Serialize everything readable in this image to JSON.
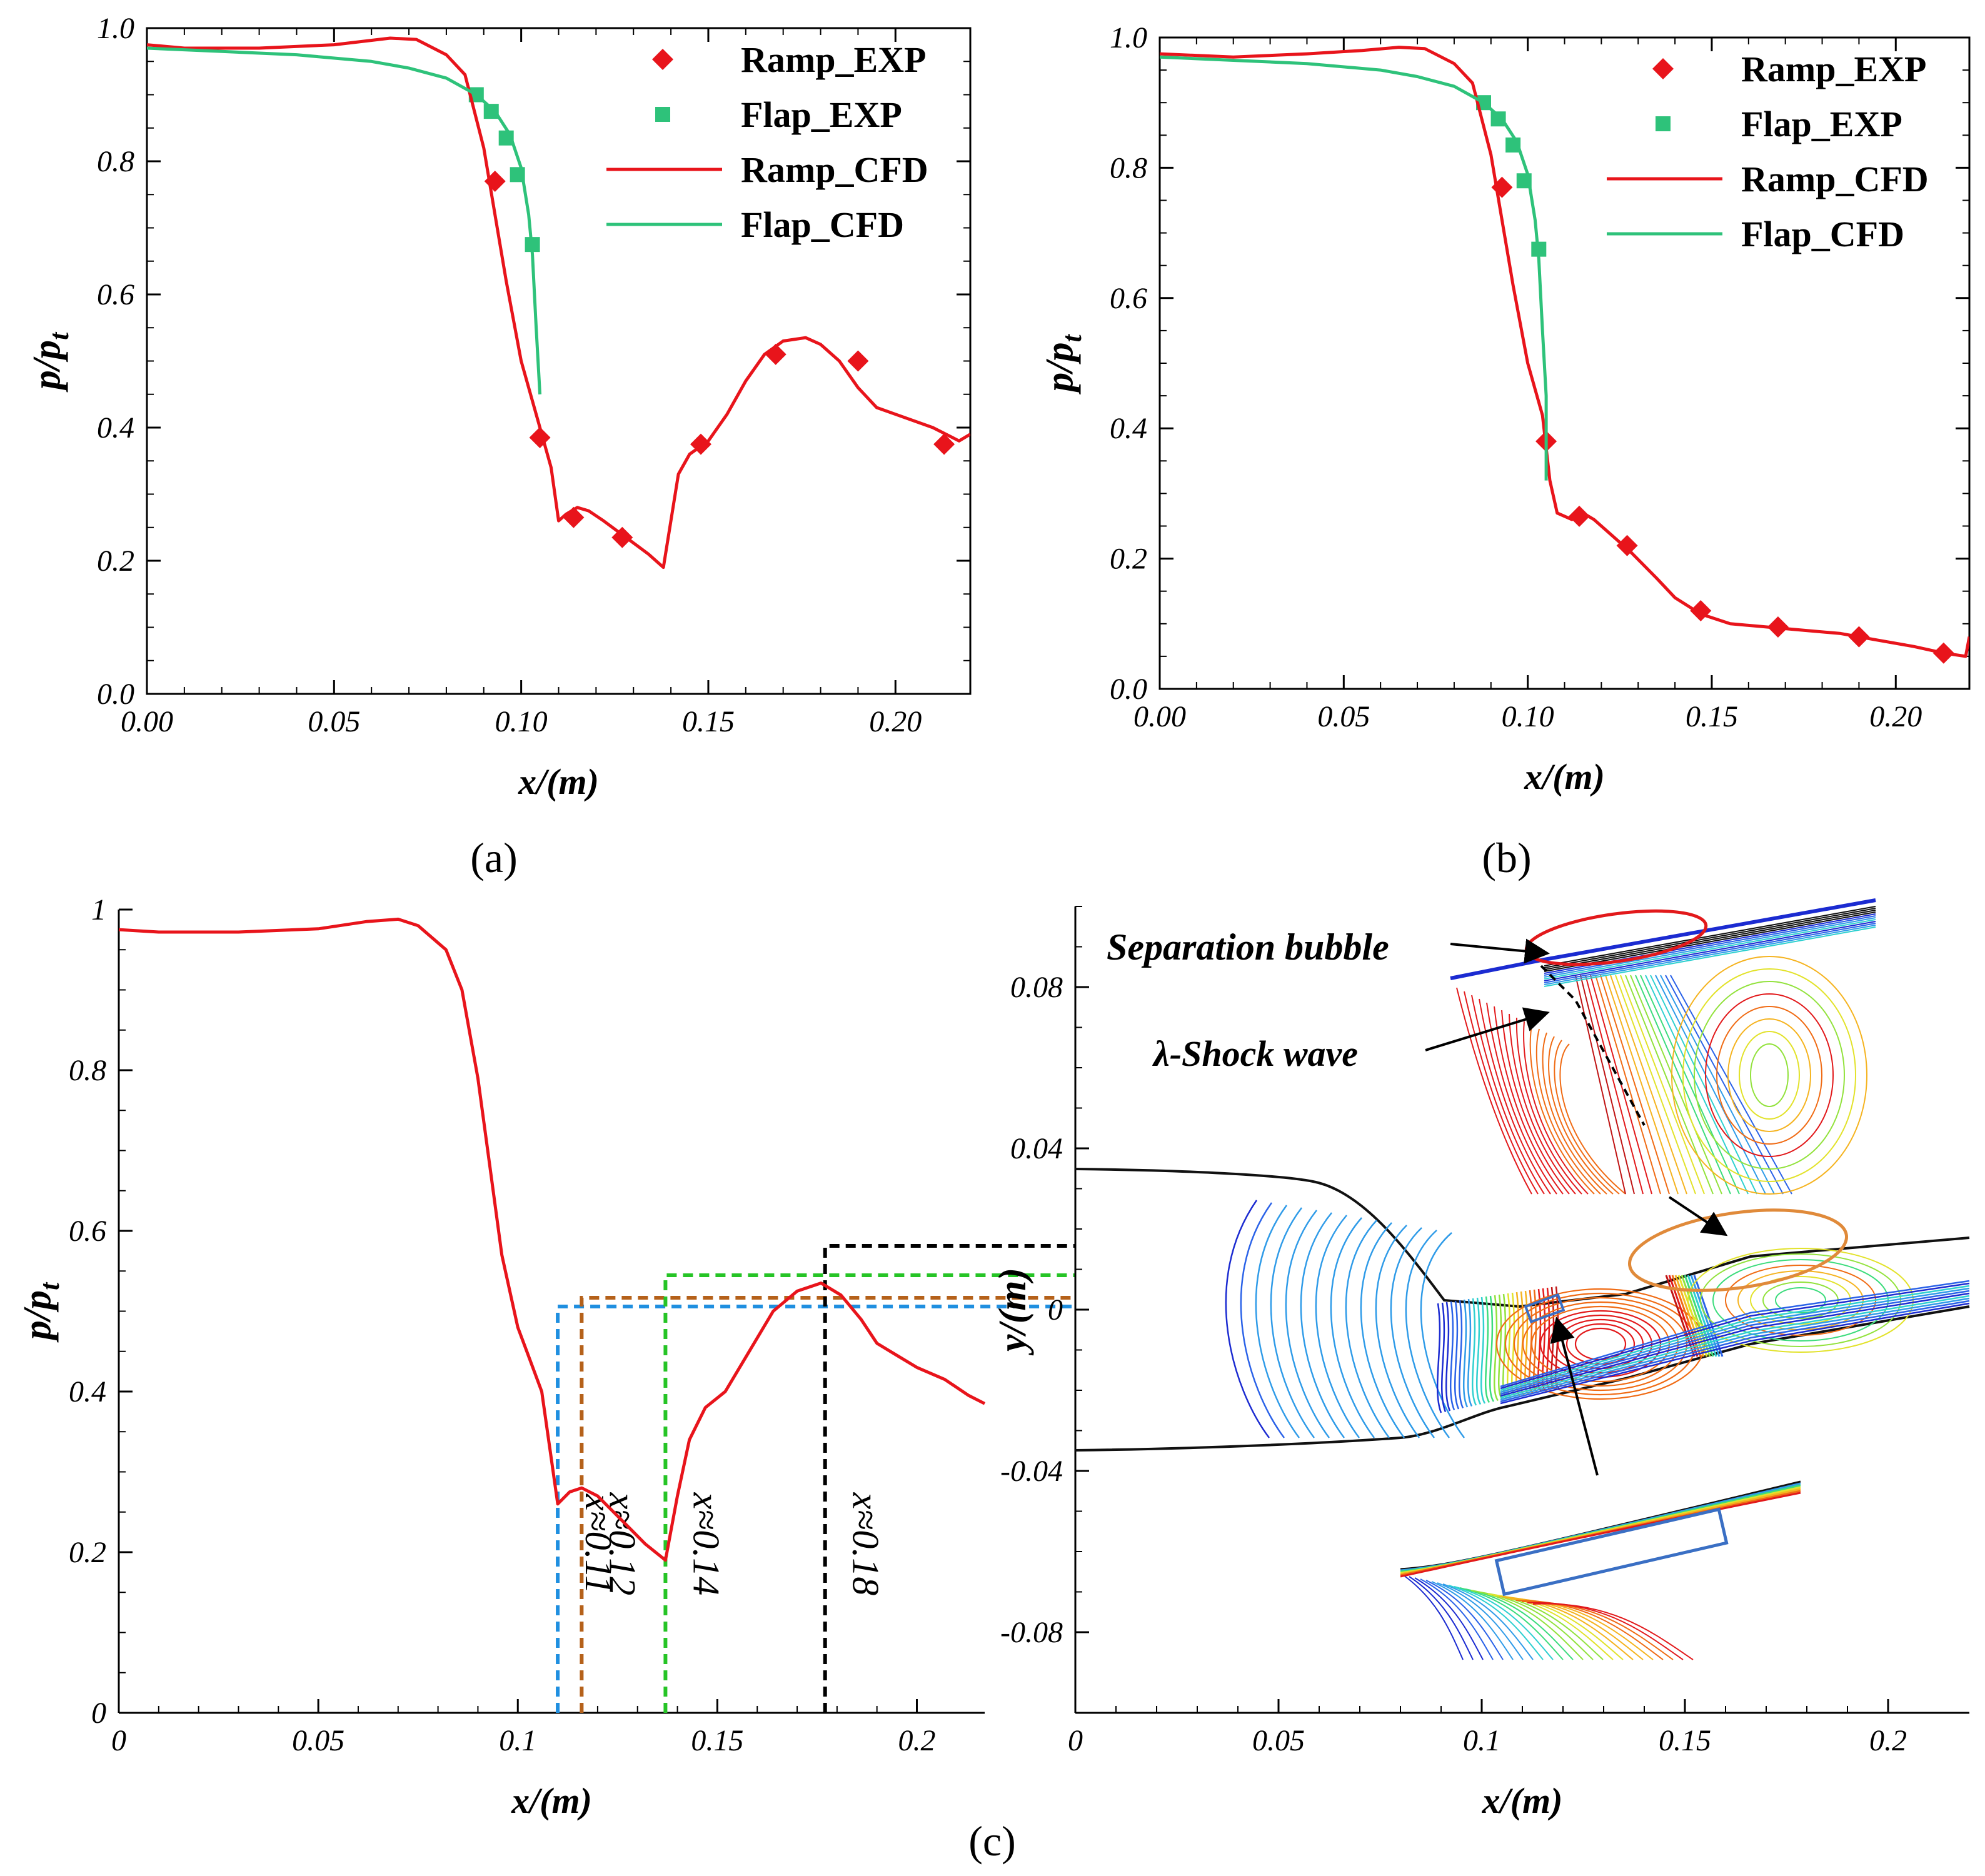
{
  "colors": {
    "ramp": "#e8141b",
    "flap": "#2ec27a",
    "blue_dash": "#1f8fe0",
    "brown_dash": "#b5611a",
    "green_dash": "#26c426",
    "black_dash": "#000000"
  },
  "captions": {
    "a": "(a)",
    "b": "(b)",
    "c": "(c)"
  },
  "annotations": {
    "separation_bubble": "Separation bubble",
    "shock_wave": "λ-Shock wave",
    "x_marks": [
      "x≈0.11",
      "x≈0.12",
      "x≈0.14",
      "x≈0.18"
    ]
  },
  "chart_data": [
    {
      "panel": "a",
      "type": "line",
      "xlabel": "x/(m)",
      "ylabel": "p/p_t",
      "xlim": [
        0,
        0.22
      ],
      "ylim": [
        0,
        1.0
      ],
      "xticks": [
        "0.00",
        "0.05",
        "0.10",
        "0.15",
        "0.20"
      ],
      "yticks": [
        "0.0",
        "0.2",
        "0.4",
        "0.6",
        "0.8",
        "1.0"
      ],
      "legend": [
        "Ramp_EXP",
        "Flap_EXP",
        "Ramp_CFD",
        "Flap_CFD"
      ],
      "legend_position": "top-right",
      "series": [
        {
          "name": "Ramp_EXP",
          "kind": "marker-diamond",
          "color_key": "ramp",
          "points": [
            [
              0.093,
              0.77
            ],
            [
              0.105,
              0.385
            ],
            [
              0.114,
              0.265
            ],
            [
              0.127,
              0.235
            ],
            [
              0.148,
              0.375
            ],
            [
              0.168,
              0.51
            ],
            [
              0.19,
              0.5
            ],
            [
              0.213,
              0.375
            ]
          ]
        },
        {
          "name": "Flap_EXP",
          "kind": "marker-square",
          "color_key": "flap",
          "points": [
            [
              0.088,
              0.9
            ],
            [
              0.092,
              0.875
            ],
            [
              0.096,
              0.835
            ],
            [
              0.099,
              0.78
            ],
            [
              0.103,
              0.675
            ]
          ]
        },
        {
          "name": "Ramp_CFD",
          "kind": "line",
          "color_key": "ramp",
          "points": [
            [
              0,
              0.975
            ],
            [
              0.01,
              0.97
            ],
            [
              0.03,
              0.97
            ],
            [
              0.05,
              0.975
            ],
            [
              0.065,
              0.985
            ],
            [
              0.072,
              0.983
            ],
            [
              0.08,
              0.96
            ],
            [
              0.085,
              0.93
            ],
            [
              0.09,
              0.82
            ],
            [
              0.093,
              0.72
            ],
            [
              0.096,
              0.62
            ],
            [
              0.1,
              0.5
            ],
            [
              0.104,
              0.42
            ],
            [
              0.108,
              0.34
            ],
            [
              0.11,
              0.26
            ],
            [
              0.112,
              0.27
            ],
            [
              0.115,
              0.28
            ],
            [
              0.118,
              0.275
            ],
            [
              0.122,
              0.26
            ],
            [
              0.128,
              0.235
            ],
            [
              0.134,
              0.21
            ],
            [
              0.138,
              0.19
            ],
            [
              0.14,
              0.26
            ],
            [
              0.142,
              0.33
            ],
            [
              0.145,
              0.36
            ],
            [
              0.15,
              0.38
            ],
            [
              0.155,
              0.42
            ],
            [
              0.16,
              0.47
            ],
            [
              0.165,
              0.51
            ],
            [
              0.17,
              0.53
            ],
            [
              0.176,
              0.535
            ],
            [
              0.18,
              0.525
            ],
            [
              0.185,
              0.5
            ],
            [
              0.19,
              0.46
            ],
            [
              0.195,
              0.43
            ],
            [
              0.2,
              0.42
            ],
            [
              0.21,
              0.4
            ],
            [
              0.217,
              0.38
            ],
            [
              0.22,
              0.39
            ]
          ]
        },
        {
          "name": "Flap_CFD",
          "kind": "line",
          "color_key": "flap",
          "points": [
            [
              0,
              0.97
            ],
            [
              0.02,
              0.965
            ],
            [
              0.04,
              0.96
            ],
            [
              0.06,
              0.95
            ],
            [
              0.07,
              0.94
            ],
            [
              0.08,
              0.925
            ],
            [
              0.088,
              0.9
            ],
            [
              0.093,
              0.875
            ],
            [
              0.097,
              0.84
            ],
            [
              0.1,
              0.79
            ],
            [
              0.102,
              0.72
            ],
            [
              0.103,
              0.66
            ],
            [
              0.104,
              0.55
            ],
            [
              0.105,
              0.45
            ]
          ]
        }
      ]
    },
    {
      "panel": "b",
      "type": "line",
      "xlabel": "x/(m)",
      "ylabel": "p/p_t",
      "xlim": [
        0,
        0.22
      ],
      "ylim": [
        0,
        1.0
      ],
      "xticks": [
        "0.00",
        "0.05",
        "0.10",
        "0.15",
        "0.20"
      ],
      "yticks": [
        "0.0",
        "0.2",
        "0.4",
        "0.6",
        "0.8",
        "1.0"
      ],
      "legend": [
        "Ramp_EXP",
        "Flap_EXP",
        "Ramp_CFD",
        "Flap_CFD"
      ],
      "legend_position": "top-right",
      "series": [
        {
          "name": "Ramp_EXP",
          "kind": "marker-diamond",
          "color_key": "ramp",
          "points": [
            [
              0.093,
              0.77
            ],
            [
              0.105,
              0.38
            ],
            [
              0.114,
              0.265
            ],
            [
              0.127,
              0.22
            ],
            [
              0.147,
              0.12
            ],
            [
              0.168,
              0.095
            ],
            [
              0.19,
              0.08
            ],
            [
              0.213,
              0.055
            ]
          ]
        },
        {
          "name": "Flap_EXP",
          "kind": "marker-square",
          "color_key": "flap",
          "points": [
            [
              0.088,
              0.9
            ],
            [
              0.092,
              0.875
            ],
            [
              0.096,
              0.835
            ],
            [
              0.099,
              0.78
            ],
            [
              0.103,
              0.675
            ]
          ]
        },
        {
          "name": "Ramp_CFD",
          "kind": "line",
          "color_key": "ramp",
          "points": [
            [
              0,
              0.975
            ],
            [
              0.02,
              0.97
            ],
            [
              0.04,
              0.975
            ],
            [
              0.055,
              0.98
            ],
            [
              0.065,
              0.985
            ],
            [
              0.072,
              0.983
            ],
            [
              0.08,
              0.96
            ],
            [
              0.085,
              0.93
            ],
            [
              0.09,
              0.82
            ],
            [
              0.093,
              0.72
            ],
            [
              0.096,
              0.62
            ],
            [
              0.1,
              0.5
            ],
            [
              0.104,
              0.42
            ],
            [
              0.106,
              0.32
            ],
            [
              0.108,
              0.27
            ],
            [
              0.112,
              0.26
            ],
            [
              0.115,
              0.27
            ],
            [
              0.118,
              0.26
            ],
            [
              0.122,
              0.24
            ],
            [
              0.128,
              0.21
            ],
            [
              0.135,
              0.17
            ],
            [
              0.14,
              0.14
            ],
            [
              0.147,
              0.115
            ],
            [
              0.155,
              0.1
            ],
            [
              0.165,
              0.095
            ],
            [
              0.175,
              0.09
            ],
            [
              0.185,
              0.085
            ],
            [
              0.195,
              0.075
            ],
            [
              0.205,
              0.065
            ],
            [
              0.213,
              0.055
            ],
            [
              0.219,
              0.05
            ],
            [
              0.22,
              0.08
            ]
          ]
        },
        {
          "name": "Flap_CFD",
          "kind": "line",
          "color_key": "flap",
          "points": [
            [
              0,
              0.97
            ],
            [
              0.02,
              0.965
            ],
            [
              0.04,
              0.96
            ],
            [
              0.06,
              0.95
            ],
            [
              0.07,
              0.94
            ],
            [
              0.08,
              0.925
            ],
            [
              0.088,
              0.9
            ],
            [
              0.093,
              0.875
            ],
            [
              0.097,
              0.84
            ],
            [
              0.1,
              0.79
            ],
            [
              0.102,
              0.72
            ],
            [
              0.103,
              0.66
            ],
            [
              0.104,
              0.55
            ],
            [
              0.105,
              0.45
            ],
            [
              0.105,
              0.32
            ]
          ]
        }
      ]
    },
    {
      "panel": "c-left",
      "type": "line",
      "xlabel": "x/(m)",
      "ylabel": "p/p_t",
      "xlim": [
        0,
        0.217
      ],
      "ylim": [
        0,
        1.0
      ],
      "xticks": [
        "0",
        "0.05",
        "0.1",
        "0.15",
        "0.2"
      ],
      "yticks": [
        "0",
        "0.2",
        "0.4",
        "0.6",
        "0.8",
        "1"
      ],
      "series": [
        {
          "kind": "line",
          "color_key": "ramp",
          "points": [
            [
              0,
              0.975
            ],
            [
              0.01,
              0.972
            ],
            [
              0.03,
              0.972
            ],
            [
              0.05,
              0.976
            ],
            [
              0.062,
              0.985
            ],
            [
              0.07,
              0.988
            ],
            [
              0.075,
              0.98
            ],
            [
              0.082,
              0.95
            ],
            [
              0.086,
              0.9
            ],
            [
              0.09,
              0.79
            ],
            [
              0.093,
              0.68
            ],
            [
              0.096,
              0.57
            ],
            [
              0.1,
              0.48
            ],
            [
              0.103,
              0.44
            ],
            [
              0.106,
              0.4
            ],
            [
              0.108,
              0.33
            ],
            [
              0.11,
              0.26
            ],
            [
              0.113,
              0.275
            ],
            [
              0.116,
              0.28
            ],
            [
              0.12,
              0.27
            ],
            [
              0.126,
              0.24
            ],
            [
              0.132,
              0.21
            ],
            [
              0.137,
              0.19
            ],
            [
              0.14,
              0.27
            ],
            [
              0.143,
              0.34
            ],
            [
              0.147,
              0.38
            ],
            [
              0.152,
              0.4
            ],
            [
              0.158,
              0.45
            ],
            [
              0.164,
              0.5
            ],
            [
              0.17,
              0.525
            ],
            [
              0.176,
              0.535
            ],
            [
              0.181,
              0.52
            ],
            [
              0.186,
              0.49
            ],
            [
              0.19,
              0.46
            ],
            [
              0.195,
              0.445
            ],
            [
              0.2,
              0.43
            ],
            [
              0.207,
              0.415
            ],
            [
              0.213,
              0.395
            ],
            [
              0.217,
              0.385
            ]
          ]
        }
      ],
      "markers_x": [
        0.11,
        0.116,
        0.137,
        0.177
      ]
    },
    {
      "panel": "c-right",
      "type": "contour",
      "xlabel": "x/(m)",
      "ylabel": "y/(m)",
      "xlim": [
        0,
        0.22
      ],
      "ylim": [
        -0.1,
        0.1
      ],
      "xticks": [
        "0",
        "0.05",
        "0.1",
        "0.15",
        "0.2"
      ],
      "yticks": [
        "-0.08",
        "-0.04",
        "0",
        "0.04",
        "0.08"
      ]
    }
  ]
}
